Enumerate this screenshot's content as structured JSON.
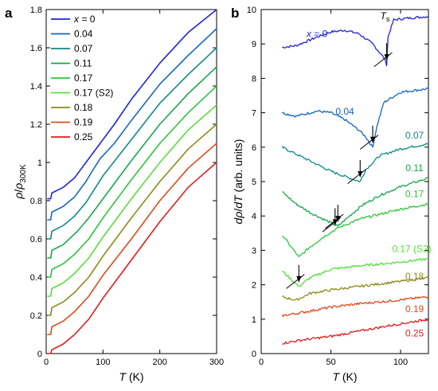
{
  "chart_data": [
    {
      "panel": "a",
      "type": "line",
      "xlabel_var": "T",
      "xlabel_unit": "(K)",
      "ylabel_parts": [
        "ρ",
        "/",
        "ρ",
        "300K"
      ],
      "xlim": [
        0,
        300
      ],
      "ylim": [
        0,
        1.8
      ],
      "xticks": [
        0,
        100,
        200,
        300
      ],
      "yticks": [
        0,
        0.2,
        0.4,
        0.6,
        0.8,
        1,
        1.2,
        1.4,
        1.6,
        1.8
      ],
      "grid": false,
      "legend_position": "top-left",
      "legend_first_prefix": "x = ",
      "series": [
        {
          "name": "0",
          "color": "#2323e0",
          "kink": 90,
          "values": [
            [
              2,
              0.81
            ],
            [
              8,
              0.81
            ],
            [
              10,
              0.84
            ],
            [
              30,
              0.87
            ],
            [
              50,
              0.92
            ],
            [
              70,
              1.0
            ],
            [
              85,
              1.06
            ],
            [
              95,
              1.1
            ],
            [
              120,
              1.2
            ],
            [
              150,
              1.33
            ],
            [
              200,
              1.52
            ],
            [
              250,
              1.68
            ],
            [
              300,
              1.8
            ]
          ]
        },
        {
          "name": "0.04",
          "color": "#1565c8",
          "kink": 80,
          "values": [
            [
              2,
              0.7
            ],
            [
              8,
              0.7
            ],
            [
              10,
              0.74
            ],
            [
              30,
              0.77
            ],
            [
              50,
              0.82
            ],
            [
              70,
              0.9
            ],
            [
              80,
              0.95
            ],
            [
              95,
              1.02
            ],
            [
              120,
              1.1
            ],
            [
              150,
              1.22
            ],
            [
              200,
              1.41
            ],
            [
              250,
              1.56
            ],
            [
              300,
              1.7
            ]
          ]
        },
        {
          "name": "0.07",
          "color": "#0f8a8a",
          "kink": 70,
          "values": [
            [
              2,
              0.6
            ],
            [
              8,
              0.6
            ],
            [
              10,
              0.64
            ],
            [
              30,
              0.67
            ],
            [
              50,
              0.72
            ],
            [
              70,
              0.79
            ],
            [
              85,
              0.86
            ],
            [
              100,
              0.93
            ],
            [
              150,
              1.12
            ],
            [
              200,
              1.31
            ],
            [
              250,
              1.46
            ],
            [
              300,
              1.6
            ]
          ]
        },
        {
          "name": "0.11",
          "color": "#18a850",
          "kink": 55,
          "values": [
            [
              2,
              0.5
            ],
            [
              8,
              0.5
            ],
            [
              10,
              0.54
            ],
            [
              30,
              0.57
            ],
            [
              55,
              0.64
            ],
            [
              75,
              0.71
            ],
            [
              100,
              0.81
            ],
            [
              150,
              1.01
            ],
            [
              200,
              1.2
            ],
            [
              250,
              1.36
            ],
            [
              300,
              1.5
            ]
          ]
        },
        {
          "name": "0.17",
          "color": "#2cc63c",
          "kink": 40,
          "values": [
            [
              2,
              0.4
            ],
            [
              8,
              0.4
            ],
            [
              10,
              0.44
            ],
            [
              30,
              0.47
            ],
            [
              50,
              0.52
            ],
            [
              75,
              0.6
            ],
            [
              100,
              0.71
            ],
            [
              150,
              0.91
            ],
            [
              200,
              1.1
            ],
            [
              250,
              1.26
            ],
            [
              300,
              1.4
            ]
          ]
        },
        {
          "name": "0.17 (S2)",
          "color": "#55e03a",
          "kink": 30,
          "values": [
            [
              2,
              0.3
            ],
            [
              8,
              0.3
            ],
            [
              10,
              0.34
            ],
            [
              30,
              0.37
            ],
            [
              50,
              0.42
            ],
            [
              75,
              0.5
            ],
            [
              100,
              0.61
            ],
            [
              150,
              0.81
            ],
            [
              200,
              1.0
            ],
            [
              250,
              1.17
            ],
            [
              300,
              1.3
            ]
          ]
        },
        {
          "name": "0.18",
          "color": "#8c8c1a",
          "kink": 0,
          "values": [
            [
              2,
              0.2
            ],
            [
              8,
              0.2
            ],
            [
              10,
              0.24
            ],
            [
              30,
              0.27
            ],
            [
              50,
              0.32
            ],
            [
              75,
              0.4
            ],
            [
              100,
              0.51
            ],
            [
              150,
              0.71
            ],
            [
              200,
              0.9
            ],
            [
              250,
              1.07
            ],
            [
              300,
              1.2
            ]
          ]
        },
        {
          "name": "0.19",
          "color": "#e24a1a",
          "kink": 0,
          "values": [
            [
              2,
              0.1
            ],
            [
              8,
              0.1
            ],
            [
              10,
              0.14
            ],
            [
              30,
              0.17
            ],
            [
              50,
              0.22
            ],
            [
              75,
              0.3
            ],
            [
              100,
              0.41
            ],
            [
              150,
              0.6
            ],
            [
              200,
              0.8
            ],
            [
              250,
              0.97
            ],
            [
              300,
              1.1
            ]
          ]
        },
        {
          "name": "0.25",
          "color": "#e01e1e",
          "kink": 0,
          "values": [
            [
              2,
              0.0
            ],
            [
              8,
              0.0
            ],
            [
              10,
              0.02
            ],
            [
              30,
              0.05
            ],
            [
              50,
              0.1
            ],
            [
              75,
              0.18
            ],
            [
              100,
              0.29
            ],
            [
              150,
              0.49
            ],
            [
              200,
              0.69
            ],
            [
              250,
              0.87
            ],
            [
              300,
              1.0
            ]
          ]
        }
      ]
    },
    {
      "panel": "b",
      "type": "line",
      "xlabel_var": "T",
      "xlabel_unit": "(K)",
      "ylabel_parts": [
        "d",
        "ρ",
        "/",
        "d",
        "T",
        "(arb. units)"
      ],
      "xlim": [
        0,
        120
      ],
      "ylim": [
        0,
        10
      ],
      "xticks": [
        0,
        50,
        100
      ],
      "yticks": [
        0,
        1,
        2,
        3,
        4,
        5,
        6,
        7,
        8,
        9,
        10
      ],
      "grid": false,
      "ts_label": "T",
      "ts_sub": "s",
      "series": [
        {
          "name": "x = 0",
          "color": "#2323e0",
          "label_at": [
            40,
            9.2
          ],
          "arrow_T": 90,
          "values": [
            [
              15,
              8.9
            ],
            [
              25,
              8.95
            ],
            [
              40,
              9.2
            ],
            [
              50,
              9.35
            ],
            [
              60,
              9.4
            ],
            [
              70,
              9.3
            ],
            [
              80,
              9.0
            ],
            [
              88,
              8.6
            ],
            [
              90,
              8.4
            ],
            [
              91,
              9.2
            ],
            [
              95,
              9.7
            ],
            [
              105,
              9.75
            ],
            [
              120,
              9.8
            ]
          ]
        },
        {
          "name": "0.04",
          "color": "#1565c8",
          "label_at": [
            60,
            6.95
          ],
          "arrow_T": 80,
          "values": [
            [
              15,
              7.0
            ],
            [
              25,
              6.9
            ],
            [
              40,
              7.05
            ],
            [
              50,
              7.0
            ],
            [
              60,
              6.8
            ],
            [
              70,
              6.5
            ],
            [
              75,
              6.3
            ],
            [
              80,
              6.0
            ],
            [
              83,
              6.6
            ],
            [
              88,
              7.3
            ],
            [
              100,
              7.6
            ],
            [
              120,
              7.7
            ]
          ]
        },
        {
          "name": "0.07",
          "color": "#0f8a8a",
          "label_at": [
            110,
            6.25
          ],
          "arrow_T": 71,
          "values": [
            [
              15,
              6.0
            ],
            [
              25,
              5.8
            ],
            [
              40,
              5.5
            ],
            [
              50,
              5.3
            ],
            [
              60,
              5.15
            ],
            [
              71,
              5.0
            ],
            [
              75,
              5.35
            ],
            [
              85,
              5.75
            ],
            [
              100,
              5.95
            ],
            [
              120,
              6.1
            ]
          ]
        },
        {
          "name": "0.11",
          "color": "#18a850",
          "label_at": [
            110,
            5.3
          ],
          "arrow_T": 55,
          "values": [
            [
              15,
              4.7
            ],
            [
              25,
              4.35
            ],
            [
              35,
              4.1
            ],
            [
              45,
              3.9
            ],
            [
              55,
              3.7
            ],
            [
              62,
              3.95
            ],
            [
              72,
              4.3
            ],
            [
              85,
              4.6
            ],
            [
              100,
              4.85
            ],
            [
              120,
              5.1
            ]
          ]
        },
        {
          "name": "0.17",
          "color": "#2cc63c",
          "label_at": [
            110,
            4.55
          ],
          "arrow_T": 53,
          "values": [
            [
              15,
              3.45
            ],
            [
              27,
              2.8
            ],
            [
              35,
              3.1
            ],
            [
              45,
              3.4
            ],
            [
              55,
              3.65
            ],
            [
              70,
              3.9
            ],
            [
              85,
              4.05
            ],
            [
              100,
              4.2
            ],
            [
              120,
              4.35
            ]
          ]
        },
        {
          "name": "0.17 (S2)",
          "color": "#55e03a",
          "label_at": [
            108,
            2.95
          ],
          "arrow_T": 27,
          "values": [
            [
              15,
              2.4
            ],
            [
              27,
              1.95
            ],
            [
              35,
              2.2
            ],
            [
              50,
              2.45
            ],
            [
              70,
              2.55
            ],
            [
              90,
              2.62
            ],
            [
              120,
              2.75
            ]
          ]
        },
        {
          "name": "0.18",
          "color": "#8c8c1a",
          "label_at": [
            110,
            2.15
          ],
          "arrow_T": null,
          "values": [
            [
              15,
              1.65
            ],
            [
              25,
              1.55
            ],
            [
              35,
              1.75
            ],
            [
              50,
              1.85
            ],
            [
              70,
              1.95
            ],
            [
              90,
              2.05
            ],
            [
              120,
              2.2
            ]
          ]
        },
        {
          "name": "0.19",
          "color": "#e24a1a",
          "label_at": [
            110,
            1.2
          ],
          "arrow_T": null,
          "values": [
            [
              15,
              1.1
            ],
            [
              30,
              1.2
            ],
            [
              50,
              1.35
            ],
            [
              70,
              1.45
            ],
            [
              90,
              1.52
            ],
            [
              120,
              1.65
            ]
          ]
        },
        {
          "name": "0.25",
          "color": "#e01e1e",
          "label_at": [
            110,
            0.5
          ],
          "arrow_T": null,
          "values": [
            [
              15,
              0.3
            ],
            [
              30,
              0.4
            ],
            [
              50,
              0.5
            ],
            [
              70,
              0.65
            ],
            [
              90,
              0.8
            ],
            [
              120,
              1.0
            ]
          ]
        }
      ]
    }
  ]
}
